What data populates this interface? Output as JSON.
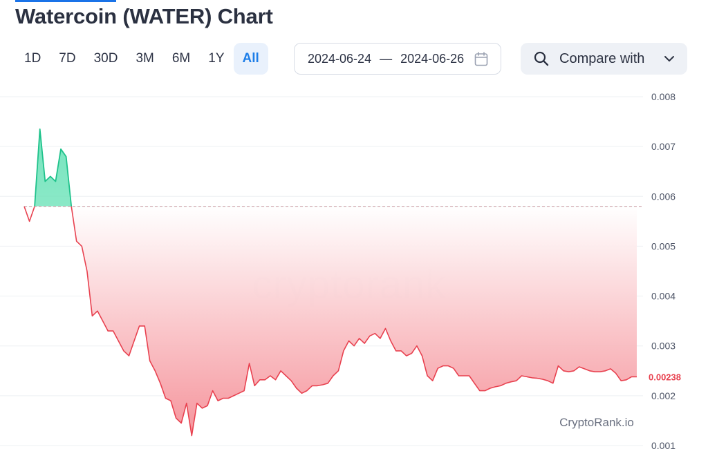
{
  "page": {
    "title": "Watercoin (WATER) Chart"
  },
  "toolbar": {
    "ranges": [
      "1D",
      "7D",
      "30D",
      "3M",
      "6M",
      "1Y",
      "All"
    ],
    "active_range": "All",
    "date_from": "2024-06-24",
    "date_separator": "—",
    "date_to": "2024-06-26",
    "compare_label": "Compare with"
  },
  "icons": {
    "calendar": "calendar-icon",
    "search": "search-icon",
    "chevron": "chevron-down-icon"
  },
  "colors": {
    "up": "#1fc28b",
    "down": "#e8414f",
    "accent": "#1e7ee8"
  },
  "chart_data": {
    "type": "area",
    "title": "",
    "xlabel": "",
    "ylabel": "",
    "ylim": [
      0.001,
      0.008
    ],
    "y_ticks": [
      "0.008",
      "0.007",
      "0.006",
      "0.005",
      "0.004",
      "0.003",
      "0.002",
      "0.001"
    ],
    "baseline": 0.0058,
    "current_price_label": "0.00238",
    "watermark": "cryptorank",
    "source_label": "CryptoRank.io",
    "grid": true,
    "x_range": [
      "2024-06-24",
      "2024-06-26"
    ],
    "series": [
      {
        "values": [
          0.0058,
          0.0055,
          0.0058,
          0.00735,
          0.0063,
          0.0064,
          0.0063,
          0.00695,
          0.0068,
          0.0058,
          0.0051,
          0.005,
          0.0045,
          0.0036,
          0.0037,
          0.0035,
          0.0033,
          0.0033,
          0.0031,
          0.0029,
          0.0028,
          0.0031,
          0.0034,
          0.0034,
          0.0027,
          0.0025,
          0.00225,
          0.00195,
          0.0019,
          0.00155,
          0.00145,
          0.00185,
          0.0012,
          0.00185,
          0.00175,
          0.0018,
          0.0021,
          0.0019,
          0.00195,
          0.00195,
          0.002,
          0.00205,
          0.0021,
          0.00265,
          0.0022,
          0.00232,
          0.00232,
          0.0024,
          0.00232,
          0.0025,
          0.0024,
          0.0023,
          0.00215,
          0.00205,
          0.0021,
          0.0022,
          0.0022,
          0.00222,
          0.00225,
          0.0024,
          0.0025,
          0.0029,
          0.0031,
          0.003,
          0.00315,
          0.00305,
          0.0032,
          0.00325,
          0.00315,
          0.00335,
          0.0031,
          0.0029,
          0.0029,
          0.0028,
          0.00285,
          0.003,
          0.0028,
          0.0024,
          0.0023,
          0.00255,
          0.0026,
          0.0026,
          0.00255,
          0.0024,
          0.0024,
          0.0024,
          0.00225,
          0.0021,
          0.0021,
          0.00215,
          0.00218,
          0.0022,
          0.00225,
          0.00228,
          0.0023,
          0.0024,
          0.00238,
          0.00236,
          0.00235,
          0.00233,
          0.0023,
          0.00225,
          0.0026,
          0.0025,
          0.00248,
          0.0025,
          0.00258,
          0.00254,
          0.0025,
          0.00248,
          0.00248,
          0.0025,
          0.00254,
          0.00245,
          0.0023,
          0.00232,
          0.00238,
          0.00238
        ]
      }
    ]
  }
}
